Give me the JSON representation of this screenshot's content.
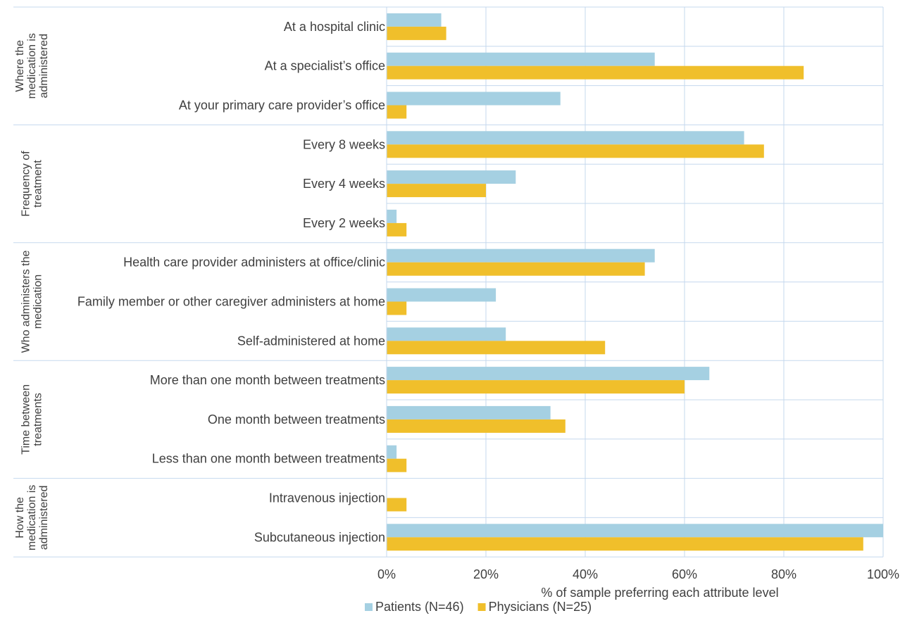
{
  "chart_data": {
    "type": "bar",
    "orientation": "horizontal",
    "xlabel": "% of sample preferring each attribute level",
    "xlim": [
      0,
      100
    ],
    "x_ticks": [
      "0%",
      "20%",
      "40%",
      "60%",
      "80%",
      "100%"
    ],
    "grid": true,
    "legend_position": "bottom",
    "groups": [
      {
        "label": "Where the medication is administered",
        "label_lines": [
          "Where the",
          "medication is",
          "administered"
        ],
        "categories": [
          "At a hospital clinic",
          "At a specialist’s office",
          "At your primary care provider’s office"
        ]
      },
      {
        "label": "Frequency of treatment",
        "label_lines": [
          "Frequency of",
          "treatment"
        ],
        "categories": [
          "Every 8 weeks",
          "Every 4 weeks",
          "Every 2 weeks"
        ]
      },
      {
        "label": "Who administers the medication",
        "label_lines": [
          "Who administers the",
          "medication"
        ],
        "categories": [
          "Health care provider administers at office/clinic",
          "Family member or other caregiver administers at home",
          "Self-administered at home"
        ]
      },
      {
        "label": "Time between treatments",
        "label_lines": [
          "Time between",
          "treatments"
        ],
        "categories": [
          "More than one month between treatments",
          "One month between treatments",
          "Less than one month between treatments"
        ]
      },
      {
        "label": "How the medication is administered",
        "label_lines": [
          "How the",
          "medication is",
          "administered"
        ],
        "categories": [
          "Intravenous injection",
          "Subcutaneous injection"
        ]
      }
    ],
    "series": [
      {
        "name": "Patients  (N=46)",
        "color": "#a5d0e2",
        "values": [
          11,
          54,
          35,
          72,
          26,
          2,
          54,
          22,
          24,
          65,
          33,
          2,
          0,
          100
        ]
      },
      {
        "name": "Physicians (N=25)",
        "color": "#f0bf2b",
        "values": [
          12,
          84,
          4,
          76,
          20,
          4,
          52,
          4,
          44,
          60,
          36,
          4,
          4,
          96
        ]
      }
    ]
  }
}
